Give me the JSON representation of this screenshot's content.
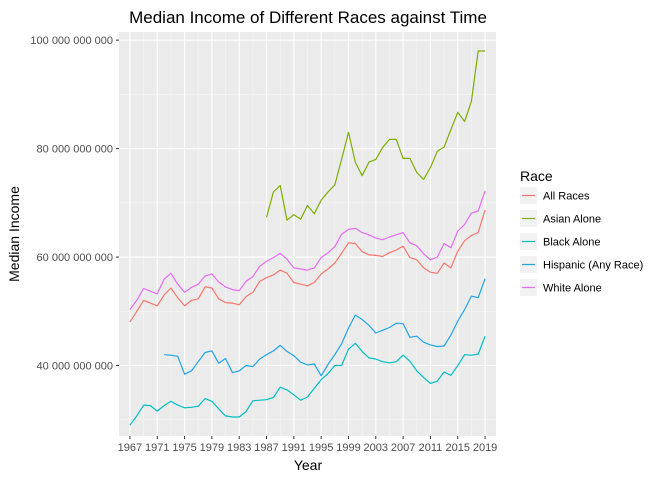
{
  "chart_data": {
    "type": "line",
    "title": "Median Income of Different Races against Time",
    "xlabel": "Year",
    "ylabel": "Median Income",
    "xlim": [
      1965.4,
      2020.6
    ],
    "ylim": [
      27000000000,
      101500000000
    ],
    "x_ticks": [
      1967,
      1971,
      1975,
      1979,
      1983,
      1987,
      1991,
      1995,
      1999,
      2003,
      2007,
      2011,
      2015,
      2019
    ],
    "x_tick_labels": [
      "1967",
      "1971",
      "1975",
      "1979",
      "1983",
      "1987",
      "1991",
      "1995",
      "1999",
      "2003",
      "2007",
      "2011",
      "2015",
      "2019"
    ],
    "y_ticks": [
      40000000000,
      60000000000,
      80000000000,
      100000000000
    ],
    "y_tick_labels": [
      "40 000 000 000",
      "60 000 000 000",
      "80 000 000 000",
      "100 000 000 000"
    ],
    "grid": true,
    "legend": {
      "title": "Race",
      "position": "right"
    },
    "series": [
      {
        "name": "All Races",
        "color": "#F8766D",
        "x": [
          1967,
          1968,
          1969,
          1970,
          1971,
          1972,
          1973,
          1974,
          1975,
          1976,
          1977,
          1978,
          1979,
          1980,
          1981,
          1982,
          1983,
          1984,
          1985,
          1986,
          1987,
          1988,
          1989,
          1990,
          1991,
          1992,
          1993,
          1994,
          1995,
          1996,
          1997,
          1998,
          1999,
          2000,
          2001,
          2002,
          2003,
          2004,
          2005,
          2006,
          2007,
          2008,
          2009,
          2010,
          2011,
          2012,
          2013,
          2014,
          2015,
          2016,
          2017,
          2018,
          2019
        ],
        "values": [
          48000000000,
          50000000000,
          52000000000,
          51500000000,
          51000000000,
          53000000000,
          54300000000,
          52500000000,
          51000000000,
          52000000000,
          52300000000,
          54500000000,
          54300000000,
          52300000000,
          51600000000,
          51500000000,
          51200000000,
          52700000000,
          53500000000,
          55500000000,
          56200000000,
          56700000000,
          57600000000,
          57000000000,
          55300000000,
          55000000000,
          54700000000,
          55300000000,
          56900000000,
          57800000000,
          58900000000,
          60700000000,
          62600000000,
          62500000000,
          61000000000,
          60400000000,
          60300000000,
          60100000000,
          60800000000,
          61300000000,
          62000000000,
          59900000000,
          59500000000,
          58000000000,
          57200000000,
          57000000000,
          58900000000,
          58000000000,
          61100000000,
          63000000000,
          64000000000,
          64500000000,
          68700000000
        ]
      },
      {
        "name": "Asian Alone",
        "color": "#7CAE00",
        "x": [
          1987,
          1988,
          1989,
          1990,
          1991,
          1992,
          1993,
          1994,
          1995,
          1996,
          1997,
          1998,
          1999,
          2000,
          2001,
          2002,
          2003,
          2004,
          2005,
          2006,
          2007,
          2008,
          2009,
          2010,
          2011,
          2012,
          2013,
          2014,
          2015,
          2016,
          2017,
          2018,
          2019
        ],
        "values": [
          67300000000,
          72000000000,
          73200000000,
          66800000000,
          67800000000,
          67000000000,
          69500000000,
          68000000000,
          70500000000,
          72000000000,
          73300000000,
          78000000000,
          83000000000,
          77500000000,
          75000000000,
          77500000000,
          78000000000,
          80200000000,
          81700000000,
          81700000000,
          78200000000,
          78200000000,
          75600000000,
          74300000000,
          76500000000,
          79500000000,
          80300000000,
          83500000000,
          86700000000,
          85000000000,
          88700000000,
          98000000000,
          98000000000
        ]
      },
      {
        "name": "Black Alone",
        "color": "#00BFC4",
        "x": [
          1967,
          1968,
          1969,
          1970,
          1971,
          1972,
          1973,
          1974,
          1975,
          1976,
          1977,
          1978,
          1979,
          1980,
          1981,
          1982,
          1983,
          1984,
          1985,
          1986,
          1987,
          1988,
          1989,
          1990,
          1991,
          1992,
          1993,
          1994,
          1995,
          1996,
          1997,
          1998,
          1999,
          2000,
          2001,
          2002,
          2003,
          2004,
          2005,
          2006,
          2007,
          2008,
          2009,
          2010,
          2011,
          2012,
          2013,
          2014,
          2015,
          2016,
          2017,
          2018,
          2019
        ],
        "values": [
          29000000000,
          30700000000,
          32700000000,
          32600000000,
          31600000000,
          32600000000,
          33400000000,
          32700000000,
          32200000000,
          32300000000,
          32500000000,
          33900000000,
          33400000000,
          32000000000,
          30700000000,
          30500000000,
          30500000000,
          31500000000,
          33500000000,
          33600000000,
          33700000000,
          34100000000,
          36000000000,
          35500000000,
          34600000000,
          33600000000,
          34200000000,
          35800000000,
          37400000000,
          38500000000,
          40000000000,
          40000000000,
          43000000000,
          44100000000,
          42600000000,
          41400000000,
          41200000000,
          40700000000,
          40500000000,
          40700000000,
          41900000000,
          40800000000,
          39000000000,
          37800000000,
          36700000000,
          37100000000,
          38800000000,
          38200000000,
          40000000000,
          42000000000,
          41900000000,
          42100000000,
          45400000000
        ]
      },
      {
        "name": "Hispanic (Any Race)",
        "color": "#1FA5E8",
        "x": [
          1972,
          1973,
          1974,
          1975,
          1976,
          1977,
          1978,
          1979,
          1980,
          1981,
          1982,
          1983,
          1984,
          1985,
          1986,
          1987,
          1988,
          1989,
          1990,
          1991,
          1992,
          1993,
          1994,
          1995,
          1996,
          1997,
          1998,
          1999,
          2000,
          2001,
          2002,
          2003,
          2004,
          2005,
          2006,
          2007,
          2008,
          2009,
          2010,
          2011,
          2012,
          2013,
          2014,
          2015,
          2016,
          2017,
          2018,
          2019
        ],
        "values": [
          42000000000,
          41900000000,
          41700000000,
          38400000000,
          39000000000,
          40700000000,
          42400000000,
          42700000000,
          40400000000,
          41300000000,
          38700000000,
          39000000000,
          40000000000,
          39800000000,
          41200000000,
          42000000000,
          42700000000,
          43700000000,
          42600000000,
          41800000000,
          40600000000,
          40100000000,
          40300000000,
          38100000000,
          40200000000,
          42000000000,
          44000000000,
          46900000000,
          49300000000,
          48500000000,
          47400000000,
          46000000000,
          46500000000,
          47000000000,
          47800000000,
          47700000000,
          45200000000,
          45400000000,
          44300000000,
          43800000000,
          43500000000,
          43600000000,
          45600000000,
          48200000000,
          50300000000,
          52800000000,
          52500000000,
          56000000000
        ]
      },
      {
        "name": "White Alone",
        "color": "#E76BF3",
        "x": [
          1967,
          1968,
          1969,
          1970,
          1971,
          1972,
          1973,
          1974,
          1975,
          1976,
          1977,
          1978,
          1979,
          1980,
          1981,
          1982,
          1983,
          1984,
          1985,
          1986,
          1987,
          1988,
          1989,
          1990,
          1991,
          1992,
          1993,
          1994,
          1995,
          1996,
          1997,
          1998,
          1999,
          2000,
          2001,
          2002,
          2003,
          2004,
          2005,
          2006,
          2007,
          2008,
          2009,
          2010,
          2011,
          2012,
          2013,
          2014,
          2015,
          2016,
          2017,
          2018,
          2019
        ],
        "values": [
          50300000000,
          52000000000,
          54200000000,
          53700000000,
          53200000000,
          55900000000,
          57000000000,
          55000000000,
          53500000000,
          54400000000,
          55000000000,
          56500000000,
          56900000000,
          55400000000,
          54500000000,
          54000000000,
          53800000000,
          55500000000,
          56400000000,
          58300000000,
          59200000000,
          59900000000,
          60700000000,
          59600000000,
          58000000000,
          57800000000,
          57600000000,
          58000000000,
          59900000000,
          60800000000,
          61900000000,
          64200000000,
          65100000000,
          65300000000,
          64500000000,
          64100000000,
          63500000000,
          63200000000,
          63700000000,
          64100000000,
          64500000000,
          62600000000,
          62100000000,
          60600000000,
          59500000000,
          60000000000,
          62500000000,
          61700000000,
          64800000000,
          66000000000,
          68100000000,
          68500000000,
          72200000000
        ]
      }
    ]
  }
}
